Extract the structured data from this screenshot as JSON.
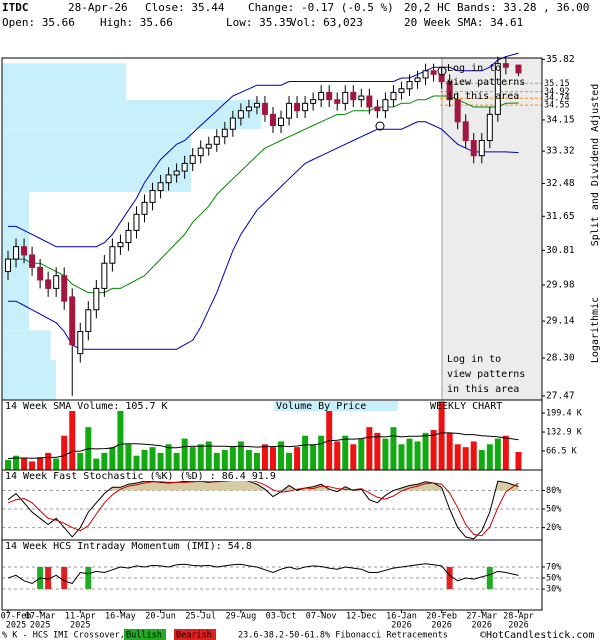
{
  "header": {
    "symbol": "ITDC",
    "date": "28-Apr-26",
    "close": "Close: 35.44",
    "change": "Change: -0.17 (-0.5 %)",
    "open": "Open: 35.66",
    "high": "High: 35.66",
    "low": "Low: 35.35",
    "volume": "Vol: 63,023"
  },
  "footer": {
    "legend_title": "% K - HCS IMI Crossover,",
    "copyright": "©HotCandlestick.com"
  },
  "chart_data": [
    {
      "type": "candlestick",
      "log_scale": true,
      "x": [
        "2025-02-07",
        "2025-02-14",
        "2025-02-21",
        "2025-02-28",
        "2025-03-07",
        "2025-03-14",
        "2025-03-21",
        "2025-03-28",
        "2025-04-04",
        "2025-04-11",
        "2025-04-18",
        "2025-04-25",
        "2025-05-02",
        "2025-05-09",
        "2025-05-16",
        "2025-05-23",
        "2025-05-30",
        "2025-06-06",
        "2025-06-13",
        "2025-06-20",
        "2025-06-27",
        "2025-07-04",
        "2025-07-11",
        "2025-07-18",
        "2025-07-25",
        "2025-08-01",
        "2025-08-08",
        "2025-08-15",
        "2025-08-22",
        "2025-08-29",
        "2025-09-05",
        "2025-09-12",
        "2025-09-19",
        "2025-09-26",
        "2025-10-03",
        "2025-10-10",
        "2025-10-17",
        "2025-10-24",
        "2025-10-31",
        "2025-11-07",
        "2025-11-14",
        "2025-11-21",
        "2025-11-28",
        "2025-12-05",
        "2025-12-12",
        "2025-12-19",
        "2025-12-26",
        "2026-01-02",
        "2026-01-09",
        "2026-01-16",
        "2026-01-23",
        "2026-01-30",
        "2026-02-06",
        "2026-02-13",
        "2026-02-20",
        "2026-02-27",
        "2026-03-06",
        "2026-03-13",
        "2026-03-20",
        "2026-03-27",
        "2026-04-03",
        "2026-04-10",
        "2026-04-17",
        "2026-04-28"
      ],
      "open": [
        30.3,
        30.6,
        30.9,
        30.7,
        30.4,
        30.1,
        29.9,
        30.2,
        29.7,
        28.4,
        28.9,
        29.4,
        29.9,
        30.5,
        30.9,
        31.0,
        31.3,
        31.7,
        32.0,
        32.3,
        32.5,
        32.7,
        32.8,
        33.0,
        33.2,
        33.4,
        33.5,
        33.7,
        33.9,
        34.2,
        34.4,
        34.5,
        34.6,
        34.3,
        34.0,
        34.2,
        34.6,
        34.4,
        34.6,
        34.7,
        34.9,
        34.7,
        34.6,
        34.9,
        34.7,
        34.8,
        34.5,
        34.4,
        34.7,
        34.9,
        35.0,
        35.2,
        35.3,
        35.5,
        35.4,
        35.2,
        34.7,
        34.1,
        33.6,
        33.2,
        33.6,
        34.3,
        35.7,
        35.66
      ],
      "high": [
        30.8,
        31.1,
        31.1,
        30.9,
        30.6,
        30.3,
        30.4,
        30.4,
        29.9,
        29.1,
        29.6,
        30.1,
        30.7,
        31.1,
        31.2,
        31.5,
        31.9,
        32.2,
        32.5,
        32.7,
        32.9,
        33.0,
        33.2,
        33.4,
        33.6,
        33.7,
        33.9,
        34.1,
        34.4,
        34.6,
        34.7,
        34.8,
        34.8,
        34.5,
        34.4,
        34.8,
        34.8,
        34.8,
        34.9,
        35.1,
        35.1,
        34.9,
        35.1,
        35.1,
        35.0,
        35.0,
        34.7,
        34.9,
        35.1,
        35.2,
        35.4,
        35.5,
        35.7,
        35.7,
        35.6,
        35.4,
        34.9,
        34.3,
        33.8,
        33.8,
        34.5,
        35.9,
        35.9,
        35.66
      ],
      "low": [
        30.1,
        30.4,
        30.5,
        30.2,
        29.9,
        29.7,
        29.7,
        29.4,
        27.47,
        28.2,
        28.7,
        29.2,
        29.7,
        30.3,
        30.7,
        30.8,
        31.1,
        31.5,
        31.8,
        32.1,
        32.3,
        32.5,
        32.6,
        32.8,
        33.0,
        33.2,
        33.3,
        33.5,
        33.7,
        34.0,
        34.2,
        34.3,
        34.1,
        33.8,
        33.8,
        34.0,
        34.2,
        34.2,
        34.4,
        34.5,
        34.5,
        34.4,
        34.4,
        34.5,
        34.5,
        34.3,
        34.2,
        34.2,
        34.5,
        34.7,
        34.8,
        35.0,
        35.1,
        35.2,
        35.0,
        34.5,
        33.9,
        33.4,
        33.0,
        33.0,
        33.4,
        34.1,
        35.4,
        35.35
      ],
      "close": [
        30.6,
        30.9,
        30.7,
        30.4,
        30.1,
        29.9,
        30.2,
        29.6,
        28.6,
        28.9,
        29.4,
        29.9,
        30.5,
        30.9,
        31.0,
        31.3,
        31.7,
        32.0,
        32.3,
        32.5,
        32.7,
        32.8,
        33.0,
        33.2,
        33.4,
        33.5,
        33.7,
        33.9,
        34.2,
        34.4,
        34.5,
        34.6,
        34.3,
        34.0,
        34.2,
        34.6,
        34.4,
        34.6,
        34.7,
        34.9,
        34.7,
        34.6,
        34.9,
        34.7,
        34.8,
        34.5,
        34.4,
        34.7,
        34.9,
        35.0,
        35.2,
        35.3,
        35.5,
        35.4,
        35.2,
        34.7,
        34.1,
        33.6,
        33.2,
        33.6,
        34.3,
        35.7,
        35.6,
        35.44
      ],
      "colors": {
        "up": "#ffffff",
        "down": "#a3173f",
        "wick": "#000000"
      },
      "series": [
        {
          "name": "20,2 HC Bands: 33.28 , 36.00",
          "color": "#0000bb",
          "upper": [
            31.4,
            31.4,
            31.3,
            31.2,
            31.1,
            31.0,
            30.9,
            30.9,
            30.9,
            30.9,
            30.9,
            30.9,
            31.0,
            31.2,
            31.5,
            31.8,
            32.1,
            32.5,
            32.8,
            33.1,
            33.3,
            33.5,
            33.6,
            33.8,
            34.0,
            34.2,
            34.4,
            34.6,
            34.8,
            34.9,
            35.0,
            35.1,
            35.1,
            35.1,
            35.1,
            35.2,
            35.2,
            35.2,
            35.2,
            35.2,
            35.2,
            35.2,
            35.2,
            35.2,
            35.2,
            35.2,
            35.2,
            35.2,
            35.2,
            35.3,
            35.3,
            35.4,
            35.5,
            35.6,
            35.6,
            35.6,
            35.5,
            35.5,
            35.5,
            35.5,
            35.6,
            35.8,
            35.9,
            36.0
          ],
          "lower": [
            29.6,
            29.6,
            29.5,
            29.4,
            29.3,
            29.2,
            29.1,
            28.9,
            28.6,
            28.5,
            28.5,
            28.5,
            28.5,
            28.5,
            28.5,
            28.5,
            28.5,
            28.5,
            28.5,
            28.5,
            28.5,
            28.5,
            28.6,
            28.7,
            29.0,
            29.4,
            29.8,
            30.3,
            30.8,
            31.2,
            31.5,
            31.8,
            32.0,
            32.2,
            32.4,
            32.6,
            32.8,
            33.0,
            33.1,
            33.2,
            33.3,
            33.4,
            33.5,
            33.6,
            33.7,
            33.8,
            33.9,
            33.9,
            33.9,
            33.9,
            34.0,
            34.1,
            34.1,
            34.0,
            33.9,
            33.7,
            33.5,
            33.4,
            33.3,
            33.3,
            33.3,
            33.3,
            33.3,
            33.28
          ]
        },
        {
          "name": "20 Week SMA: 34.61",
          "color": "#008800",
          "values": [
            30.6,
            30.6,
            30.6,
            30.5,
            30.5,
            30.4,
            30.3,
            30.2,
            30.0,
            29.9,
            29.8,
            29.8,
            29.8,
            29.9,
            29.9,
            30.0,
            30.1,
            30.2,
            30.4,
            30.6,
            30.8,
            31.0,
            31.2,
            31.5,
            31.7,
            31.9,
            32.2,
            32.4,
            32.6,
            32.8,
            33.0,
            33.2,
            33.4,
            33.5,
            33.6,
            33.7,
            33.8,
            33.9,
            34.0,
            34.1,
            34.2,
            34.3,
            34.3,
            34.4,
            34.4,
            34.4,
            34.5,
            34.5,
            34.5,
            34.6,
            34.6,
            34.7,
            34.7,
            34.8,
            34.8,
            34.8,
            34.7,
            34.6,
            34.5,
            34.5,
            34.5,
            34.5,
            34.6,
            34.61
          ]
        }
      ],
      "fibonacci": {
        "name": "23.6-38.2-50-61.8% Fibonacci Retracements",
        "color": "#ff8c1a",
        "values": [
          35.15,
          34.92,
          34.74,
          34.55
        ]
      },
      "volume_by_price": {
        "name": "Volume By Price",
        "color": "#c8f0fa",
        "bins": [
          27.38,
          28.26,
          28.93,
          30.43,
          31.22,
          32.26,
          33.9,
          34.69,
          35.71
        ],
        "values": [
          10,
          9,
          5,
          5,
          5,
          35,
          48,
          23
        ],
        "xlim": [
          0,
          100
        ]
      },
      "notice": [
        "Log in to",
        "view patterns",
        "in this area"
      ],
      "side_labels": [
        "Split and Dividend Adjusted",
        "Logarithmic"
      ],
      "ylim": [
        27.38,
        35.86
      ],
      "yticks": [
        27.47,
        {
          "value": 28.3,
          "label": "28.30"
        },
        29.14,
        29.98,
        30.81,
        31.65,
        32.48,
        33.32,
        34.15,
        35.82
      ],
      "xticks": [
        {
          "value": "2025-02-07",
          "label": "07-Feb"
        },
        {
          "value": "2025-03-07",
          "label": "07-Mar"
        },
        {
          "value": "2025-04-11",
          "label": "11-Apr"
        },
        {
          "value": "2025-05-16",
          "label": "16-May"
        },
        {
          "value": "2025-06-20",
          "label": "20-Jun"
        },
        {
          "value": "2025-07-25",
          "label": "25-Jul"
        },
        {
          "value": "2025-08-29",
          "label": "29-Aug"
        },
        {
          "value": "2025-10-03",
          "label": "03-Oct"
        },
        {
          "value": "2025-11-07",
          "label": "07-Nov"
        },
        {
          "value": "2025-12-12",
          "label": "12-Dec"
        },
        {
          "value": "2026-01-16",
          "label": "16-Jan"
        },
        {
          "value": "2026-02-20",
          "label": "20-Feb"
        },
        {
          "value": "2026-03-27",
          "label": "27-Mar"
        },
        {
          "value": "2026-04-28",
          "label": "28-Apr"
        }
      ],
      "xtick_years": [
        {
          "value": "2025-02-07",
          "label": "2025"
        },
        {
          "value": "2025-03-07",
          "label": "2025"
        },
        {
          "value": "2025-04-11",
          "label": "2025"
        },
        {
          "value": "2026-01-16",
          "label": "2026"
        },
        {
          "value": "2026-02-20",
          "label": "2026"
        },
        {
          "value": "2026-03-27",
          "label": "2026"
        },
        {
          "value": "2026-04-28",
          "label": "2026"
        }
      ]
    },
    {
      "type": "bar",
      "title": "14 Week SMA Volume: 105.7 K",
      "subtitle": "WEEKLY CHART",
      "values": [
        35,
        50,
        40,
        30,
        45,
        60,
        40,
        120,
        230,
        60,
        150,
        40,
        60,
        80,
        230,
        90,
        50,
        70,
        80,
        60,
        90,
        60,
        110,
        80,
        90,
        100,
        60,
        70,
        80,
        100,
        70,
        60,
        90,
        80,
        100,
        60,
        80,
        120,
        90,
        120,
        230,
        100,
        120,
        90,
        110,
        150,
        130,
        110,
        150,
        90,
        110,
        100,
        130,
        140,
        240,
        130,
        90,
        80,
        100,
        70,
        90,
        110,
        120,
        63
      ],
      "sma": [
        40,
        42,
        42,
        41,
        42,
        44,
        44,
        50,
        65,
        66,
        75,
        74,
        75,
        77,
        90,
        92,
        92,
        90,
        88,
        85,
        78,
        78,
        82,
        83,
        83,
        84,
        83,
        83,
        82,
        83,
        82,
        80,
        82,
        82,
        84,
        82,
        84,
        88,
        88,
        92,
        103,
        104,
        108,
        108,
        110,
        115,
        117,
        116,
        120,
        116,
        118,
        118,
        120,
        122,
        130,
        130,
        128,
        124,
        124,
        120,
        118,
        116,
        112,
        105.7
      ],
      "colors": {
        "up": "#11aa11",
        "down": "#ee1111",
        "sma": "#000000"
      },
      "ylim": [
        0,
        245
      ],
      "yticks": [
        {
          "value": 66.5,
          "label": "66.5 K"
        },
        {
          "value": 132.9,
          "label": "132.9 K"
        },
        {
          "value": 199.4,
          "label": "199.4 K"
        }
      ]
    },
    {
      "type": "line",
      "title": "14 Week Fast Stochastic (%K) (%D) : 86.4 91.9",
      "series": [
        {
          "color": "#000000",
          "values": [
            65,
            75,
            60,
            45,
            35,
            25,
            35,
            20,
            5,
            20,
            45,
            60,
            75,
            85,
            85,
            90,
            92,
            95,
            95,
            93,
            92,
            93,
            95,
            94,
            95,
            93,
            95,
            96,
            97,
            98,
            95,
            90,
            82,
            70,
            78,
            88,
            80,
            84,
            86,
            90,
            82,
            78,
            86,
            80,
            82,
            65,
            60,
            72,
            80,
            84,
            88,
            90,
            94,
            92,
            85,
            50,
            20,
            5,
            2,
            15,
            45,
            95,
            93,
            86.4
          ]
        },
        {
          "color": "#cc0000",
          "values": [
            60,
            65,
            67,
            60,
            47,
            35,
            32,
            27,
            20,
            15,
            23,
            42,
            60,
            73,
            82,
            87,
            89,
            92,
            94,
            94,
            93,
            93,
            93,
            94,
            95,
            94,
            94,
            95,
            96,
            97,
            97,
            94,
            89,
            81,
            77,
            79,
            82,
            84,
            83,
            87,
            86,
            83,
            82,
            81,
            83,
            76,
            69,
            66,
            71,
            79,
            84,
            87,
            91,
            92,
            90,
            76,
            52,
            25,
            9,
            7,
            21,
            52,
            78,
            91.9
          ]
        }
      ],
      "fill_color": "#d6cba2",
      "grid": true,
      "ylim": [
        0,
        113
      ],
      "yticks": [
        {
          "value": 20,
          "label": "20%"
        },
        {
          "value": 50,
          "label": "50%"
        },
        {
          "value": 80,
          "label": "80%"
        }
      ]
    },
    {
      "type": "line",
      "title": "14 Week HCS Intraday Momentum (IMI): 54.8",
      "color": "#000000",
      "values": [
        50,
        55,
        45,
        40,
        50,
        48,
        55,
        45,
        40,
        60,
        58,
        62,
        60,
        65,
        70,
        68,
        72,
        70,
        73,
        72,
        70,
        74,
        75,
        73,
        72,
        73,
        70,
        72,
        74,
        75,
        72,
        70,
        65,
        60,
        66,
        70,
        66,
        70,
        72,
        71,
        68,
        66,
        70,
        68,
        66,
        60,
        60,
        64,
        68,
        70,
        72,
        74,
        76,
        74,
        72,
        55,
        45,
        50,
        48,
        52,
        56,
        62,
        60,
        54.8
      ],
      "signals": [
        {
          "name": "Bullish",
          "color": "#22aa22",
          "x": [
            "2025-03-07",
            "2025-04-18",
            "2026-04-03"
          ]
        },
        {
          "name": "Bearish",
          "color": "#e02020",
          "x": [
            "2025-03-14",
            "2025-03-28",
            "2026-02-27"
          ]
        }
      ],
      "signal_range": [
        30,
        70
      ],
      "grid": true,
      "ylim": [
        -8,
        119
      ],
      "yticks": [
        {
          "value": 30,
          "label": "30%"
        },
        {
          "value": 50,
          "label": "50%"
        },
        {
          "value": 70,
          "label": "70%"
        }
      ]
    }
  ]
}
